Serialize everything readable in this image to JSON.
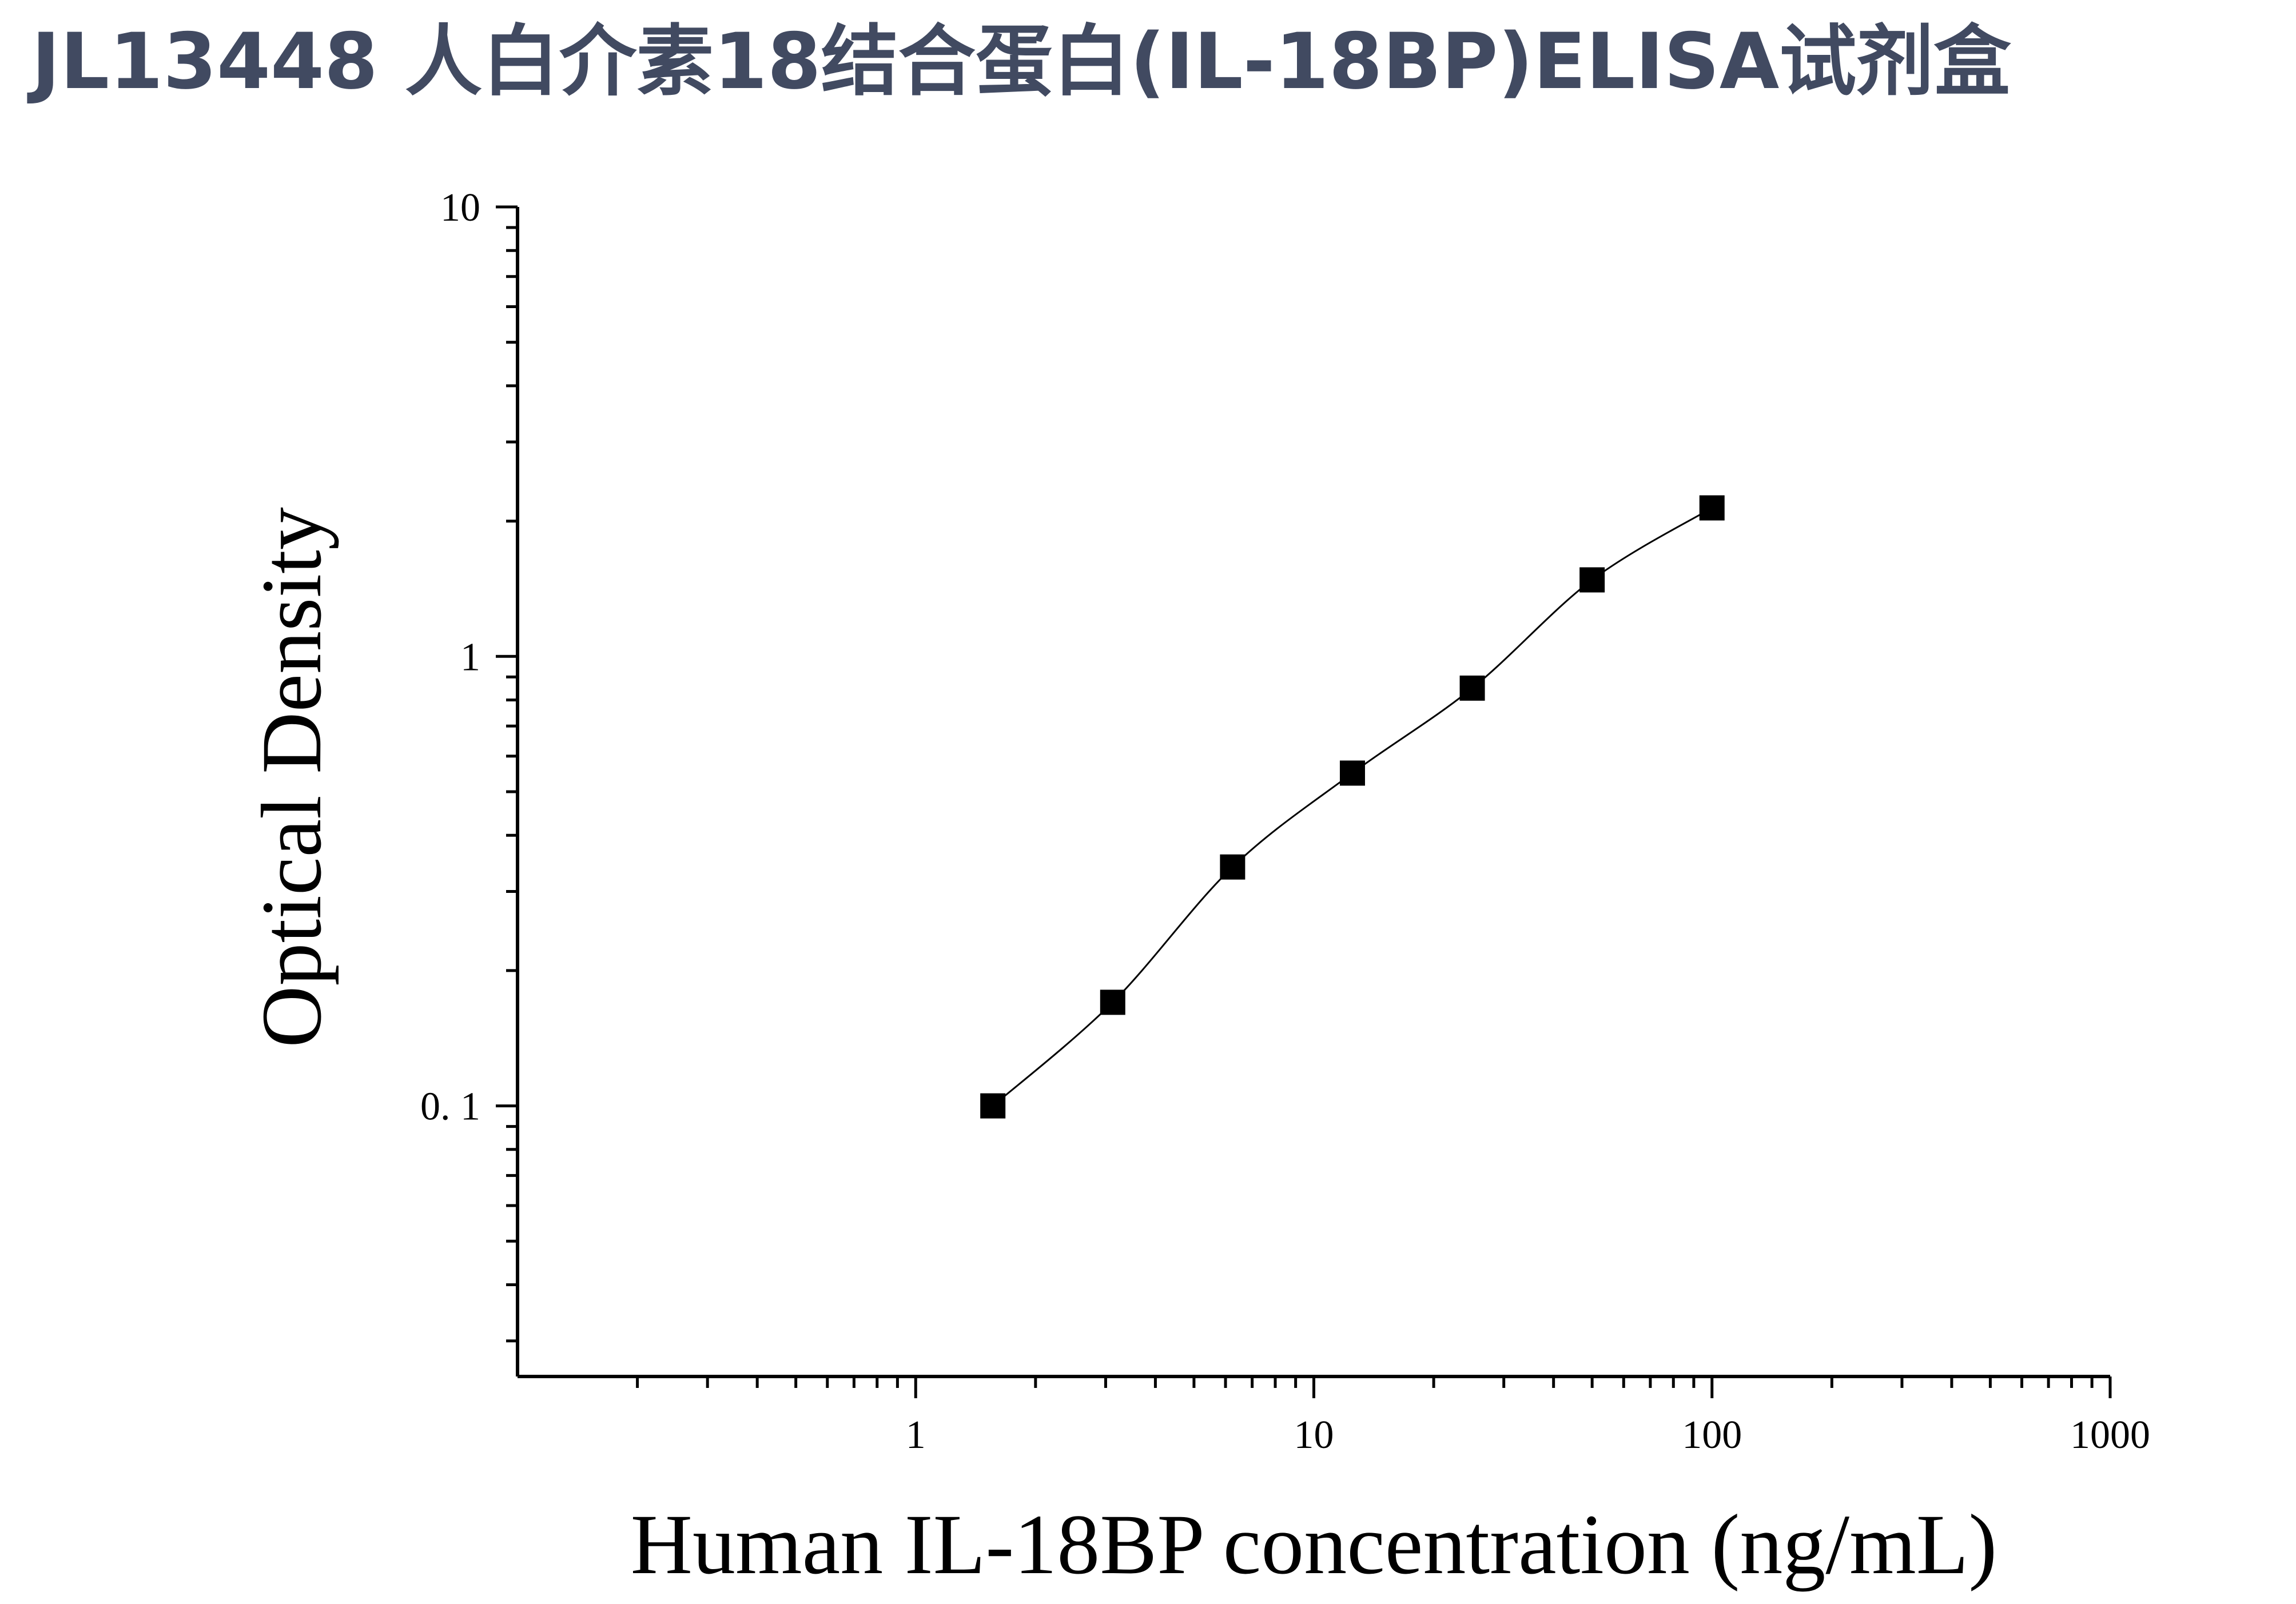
{
  "page": {
    "title": "JL13448 人白介素18结合蛋白(IL-18BP)ELISA试剂盒"
  },
  "chart_data": {
    "type": "scatter",
    "xlabel": "Human IL-18BP concentration (ng/mL)",
    "ylabel": "Optical Density",
    "x_scale": "log",
    "y_scale": "log",
    "xlim": [
      0.1,
      1000
    ],
    "ylim": [
      0.025,
      10
    ],
    "x_ticks": [
      {
        "value": 1,
        "label": "1"
      },
      {
        "value": 10,
        "label": "10"
      },
      {
        "value": 100,
        "label": "100"
      },
      {
        "value": 1000,
        "label": "1000"
      }
    ],
    "y_ticks": [
      {
        "value": 0.1,
        "label": "0. 1"
      },
      {
        "value": 1,
        "label": "1"
      },
      {
        "value": 10,
        "label": "10"
      }
    ],
    "grid": false,
    "marker": "square",
    "series": [
      {
        "points": [
          {
            "x": 1.5625,
            "y": 0.1
          },
          {
            "x": 3.125,
            "y": 0.17
          },
          {
            "x": 6.25,
            "y": 0.34
          },
          {
            "x": 12.5,
            "y": 0.55
          },
          {
            "x": 25,
            "y": 0.85
          },
          {
            "x": 50,
            "y": 1.48
          },
          {
            "x": 100,
            "y": 2.14
          }
        ]
      }
    ],
    "fit_curve": {
      "type": "smooth",
      "x_range": [
        1.5625,
        100
      ]
    },
    "colors": {
      "marker": "#000000",
      "axis": "#000000",
      "curve": "#000000",
      "title": "#414a61"
    }
  }
}
